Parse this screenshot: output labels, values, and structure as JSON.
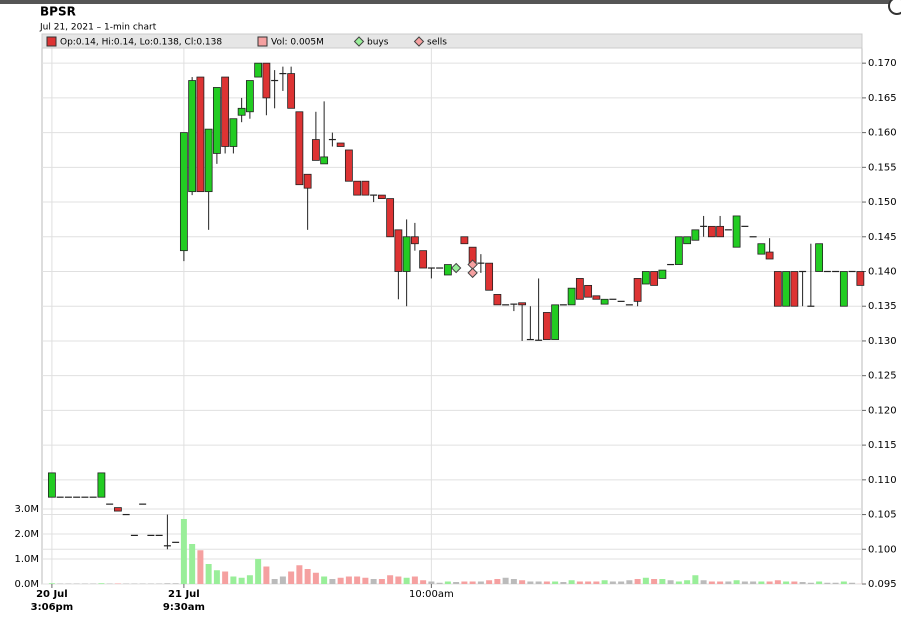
{
  "chart_data": {
    "type": "candlestick",
    "title": "BPSR",
    "subtitle": "Jul 21, 2021  – 1-min chart",
    "legend_ohlc": "Op:0.14, Hi:0.14, Lo:0.138, Cl:0.138",
    "legend_volume": "Vol: 0.005M",
    "up_color": "#22cc22",
    "down_color": "#dd3333",
    "volume_up_color": "#99ee99",
    "volume_down_color": "#f5a0a0",
    "volume_flat_color": "#bbbbbb",
    "grid": true,
    "xlim": [
      -1.2,
      98.2
    ],
    "xticks": [
      {
        "value": 0,
        "date": "20 Jul",
        "time": "3:06pm"
      },
      {
        "value": 16,
        "date": "21 Jul",
        "time": "9:30am"
      },
      {
        "value": 46,
        "time": "10:00am"
      }
    ],
    "ylim": [
      0.095,
      0.1742
    ],
    "yticks": [
      {
        "value": 0.17,
        "label": "0.170"
      },
      0.165,
      {
        "value": 0.16,
        "label": "0.160"
      },
      0.155,
      {
        "value": 0.15,
        "label": "0.150"
      },
      0.145,
      {
        "value": 0.14,
        "label": "0.140"
      },
      0.135,
      {
        "value": 0.13,
        "label": "0.130"
      },
      0.125,
      {
        "value": 0.12,
        "label": "0.120"
      },
      0.115,
      {
        "value": 0.11,
        "label": "0.110"
      },
      0.105,
      {
        "value": 0.1,
        "label": "0.100"
      },
      0.095
    ],
    "y2lim": [
      0,
      22
    ],
    "y2ticks": [
      {
        "value": 0,
        "label": "0.0M"
      },
      {
        "value": 1,
        "label": "1.0M"
      },
      {
        "value": 2,
        "label": "2.0M"
      },
      {
        "value": 3,
        "label": "3.0M"
      }
    ],
    "open": [
      0.1075,
      0.1075,
      0.1075,
      0.1075,
      0.1075,
      0.1075,
      0.1075,
      0.1065,
      0.106,
      0.105,
      0.102,
      0.1065,
      0.102,
      0.102,
      0.1005,
      0.101,
      0.143,
      0.1515,
      0.168,
      0.1515,
      0.157,
      0.168,
      0.158,
      0.1625,
      0.163,
      0.168,
      0.17,
      0.1675,
      0.1685,
      0.1685,
      0.163,
      0.154,
      0.159,
      0.1555,
      0.159,
      0.1585,
      0.1575,
      0.153,
      0.153,
      0.151,
      0.151,
      0.1505,
      0.146,
      0.14,
      0.145,
      0.143,
      0.1405,
      0.1405,
      0.1395,
      0.1405,
      0.145,
      0.1435,
      0.1412,
      0.1412,
      0.1367,
      0.1352,
      0.1353,
      0.1355,
      0.1302,
      0.1301,
      0.1341,
      0.1302,
      0.1352,
      0.1352,
      0.139,
      0.138,
      0.1365,
      0.1353,
      0.136,
      0.1357,
      0.1352,
      0.139,
      0.1382,
      0.14,
      0.139,
      0.141,
      0.141,
      0.144,
      0.1445,
      0.1465,
      0.1465,
      0.1465,
      0.146,
      0.1435,
      0.1465,
      0.145,
      0.1425,
      0.1428,
      0.14,
      0.135,
      0.14,
      0.14,
      0.135,
      0.14,
      0.14,
      0.14,
      0.135,
      0.14,
      0.14
    ],
    "high": [
      0.111,
      0.1075,
      0.1075,
      0.1075,
      0.1075,
      0.1075,
      0.111,
      0.1065,
      0.106,
      0.105,
      0.102,
      0.1065,
      0.102,
      0.102,
      0.105,
      0.101,
      0.16,
      0.168,
      0.168,
      0.1605,
      0.1665,
      0.168,
      0.162,
      0.165,
      0.1675,
      0.17,
      0.17,
      0.169,
      0.1695,
      0.1695,
      0.163,
      0.154,
      0.163,
      0.1645,
      0.16,
      0.1585,
      0.1575,
      0.153,
      0.153,
      0.151,
      0.151,
      0.1505,
      0.146,
      0.1475,
      0.147,
      0.143,
      0.1405,
      0.1405,
      0.141,
      0.1405,
      0.145,
      0.1435,
      0.1425,
      0.1412,
      0.1367,
      0.1352,
      0.1353,
      0.1355,
      0.135,
      0.139,
      0.1341,
      0.1352,
      0.1352,
      0.1376,
      0.139,
      0.138,
      0.1365,
      0.136,
      0.136,
      0.1357,
      0.1352,
      0.139,
      0.14,
      0.14,
      0.1402,
      0.141,
      0.145,
      0.145,
      0.146,
      0.148,
      0.1465,
      0.148,
      0.146,
      0.148,
      0.1465,
      0.145,
      0.144,
      0.1448,
      0.14,
      0.14,
      0.14,
      0.14,
      0.144,
      0.144,
      0.14,
      0.14,
      0.14,
      0.14,
      0.14
    ],
    "low": [
      0.1075,
      0.1075,
      0.1075,
      0.1075,
      0.1075,
      0.1075,
      0.1075,
      0.1065,
      0.1055,
      0.105,
      0.102,
      0.1065,
      0.102,
      0.102,
      0.1,
      0.101,
      0.1415,
      0.151,
      0.1515,
      0.146,
      0.1555,
      0.157,
      0.157,
      0.1615,
      0.162,
      0.168,
      0.1625,
      0.1635,
      0.166,
      0.1635,
      0.1525,
      0.146,
      0.156,
      0.1555,
      0.158,
      0.158,
      0.153,
      0.151,
      0.151,
      0.15,
      0.1505,
      0.145,
      0.136,
      0.135,
      0.143,
      0.1405,
      0.139,
      0.1405,
      0.1395,
      0.1405,
      0.144,
      0.1412,
      0.1398,
      0.1373,
      0.1352,
      0.1352,
      0.1343,
      0.13,
      0.1302,
      0.1301,
      0.1302,
      0.1302,
      0.1352,
      0.1352,
      0.136,
      0.1363,
      0.136,
      0.1353,
      0.136,
      0.1357,
      0.1352,
      0.135,
      0.1382,
      0.138,
      0.139,
      0.141,
      0.141,
      0.144,
      0.1445,
      0.145,
      0.145,
      0.145,
      0.146,
      0.1435,
      0.1465,
      0.145,
      0.1425,
      0.1418,
      0.135,
      0.135,
      0.135,
      0.135,
      0.135,
      0.14,
      0.14,
      0.14,
      0.135,
      0.14,
      0.138
    ],
    "close": [
      0.111,
      0.1075,
      0.1075,
      0.1075,
      0.1075,
      0.1075,
      0.111,
      0.1065,
      0.1055,
      0.105,
      0.102,
      0.1065,
      0.102,
      0.102,
      0.1005,
      0.101,
      0.16,
      0.1675,
      0.1515,
      0.1605,
      0.1665,
      0.158,
      0.162,
      0.1635,
      0.1675,
      0.17,
      0.165,
      0.1675,
      0.1685,
      0.1635,
      0.1525,
      0.152,
      0.156,
      0.1565,
      0.159,
      0.158,
      0.153,
      0.151,
      0.151,
      0.151,
      0.1505,
      0.145,
      0.14,
      0.145,
      0.144,
      0.1405,
      0.1405,
      0.1405,
      0.141,
      0.1405,
      0.144,
      0.1412,
      0.1412,
      0.1373,
      0.1352,
      0.1352,
      0.1353,
      0.1352,
      0.1302,
      0.1301,
      0.1302,
      0.1352,
      0.1352,
      0.1376,
      0.136,
      0.1363,
      0.136,
      0.136,
      0.136,
      0.1357,
      0.1352,
      0.1357,
      0.14,
      0.138,
      0.1402,
      0.141,
      0.145,
      0.145,
      0.146,
      0.1465,
      0.145,
      0.145,
      0.146,
      0.148,
      0.1465,
      0.145,
      0.144,
      0.1418,
      0.135,
      0.14,
      0.135,
      0.14,
      0.135,
      0.144,
      0.14,
      0.14,
      0.14,
      0.14,
      0.138
    ],
    "volume": [
      0.03,
      0.02,
      0.02,
      0.02,
      0.02,
      0.02,
      0.03,
      0.02,
      0.02,
      0.02,
      0.02,
      0.02,
      0.02,
      0.02,
      0.03,
      0.03,
      2.6,
      1.6,
      1.35,
      0.8,
      0.55,
      0.5,
      0.3,
      0.25,
      0.35,
      1.0,
      0.7,
      0.2,
      0.3,
      0.5,
      0.75,
      0.6,
      0.45,
      0.3,
      0.2,
      0.25,
      0.3,
      0.3,
      0.25,
      0.2,
      0.2,
      0.35,
      0.3,
      0.25,
      0.3,
      0.15,
      0.1,
      0.05,
      0.1,
      0.08,
      0.1,
      0.1,
      0.1,
      0.15,
      0.2,
      0.25,
      0.2,
      0.15,
      0.1,
      0.1,
      0.1,
      0.1,
      0.08,
      0.15,
      0.1,
      0.1,
      0.1,
      0.15,
      0.1,
      0.1,
      0.15,
      0.2,
      0.25,
      0.2,
      0.2,
      0.15,
      0.1,
      0.15,
      0.35,
      0.15,
      0.1,
      0.1,
      0.1,
      0.15,
      0.1,
      0.1,
      0.1,
      0.1,
      0.15,
      0.1,
      0.1,
      0.08,
      0.05,
      0.1,
      0.05,
      0.05,
      0.1,
      0.05,
      0.005
    ],
    "markers": [
      {
        "name": "buys",
        "color": "#99ee99",
        "points": [
          [
            49,
            0.1405
          ]
        ]
      },
      {
        "name": "sells",
        "color": "#f5a0a0",
        "points": [
          [
            51,
            0.141
          ],
          [
            51,
            0.1398
          ]
        ]
      }
    ]
  }
}
